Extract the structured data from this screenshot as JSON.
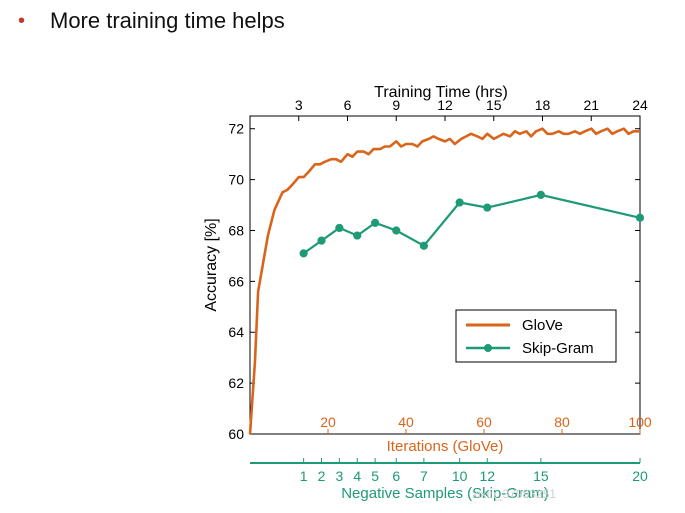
{
  "slide": {
    "bullet_glyph": "•",
    "bullet_text": "More training time helps"
  },
  "watermark": "xixin_37993251",
  "colors": {
    "glove": "#d9651b",
    "skipgram": "#1e9a77",
    "axis": "#000000",
    "bullet": "#c0392b"
  },
  "chart_data": {
    "type": "line",
    "ylabel": "Accuracy [%]",
    "ylim": [
      60,
      72.5
    ],
    "yticks": [
      60,
      62,
      64,
      66,
      68,
      70,
      72
    ],
    "top_axis": {
      "label": "Training Time (hrs)",
      "ticks": [
        3,
        6,
        9,
        12,
        15,
        18,
        21,
        24
      ],
      "range": [
        0,
        24
      ]
    },
    "iterations_axis": {
      "label": "Iterations (GloVe)",
      "ticks": [
        20,
        40,
        60,
        80,
        100
      ],
      "range": [
        0,
        100
      ]
    },
    "negative_samples_axis": {
      "label": "Negative Samples (Skip-Gram)",
      "ticks": [
        1,
        2,
        3,
        4,
        5,
        6,
        7,
        10,
        12,
        15,
        20
      ],
      "tick_positions_hrs": [
        3.3,
        4.4,
        5.5,
        6.6,
        7.7,
        9.0,
        10.7,
        12.9,
        14.6,
        17.9,
        24.0
      ]
    },
    "legend_position": "lower-right",
    "grid": false,
    "series": [
      {
        "name": "GloVe",
        "x_axis": "training_time_hrs",
        "x": [
          0,
          0.3,
          0.5,
          0.8,
          1.1,
          1.5,
          2.0,
          2.3,
          2.6,
          3.0,
          3.3,
          3.6,
          4.0,
          4.3,
          4.6,
          5.0,
          5.3,
          5.6,
          6.0,
          6.3,
          6.6,
          7.0,
          7.3,
          7.6,
          8.0,
          8.3,
          8.6,
          9.0,
          9.3,
          9.6,
          10.0,
          10.3,
          10.6,
          11.0,
          11.3,
          11.6,
          12.0,
          12.3,
          12.6,
          13.0,
          13.3,
          13.6,
          14.0,
          14.3,
          14.6,
          15.0,
          15.3,
          15.6,
          16.0,
          16.3,
          16.6,
          17.0,
          17.3,
          17.6,
          18.0,
          18.3,
          18.6,
          19.0,
          19.3,
          19.6,
          20.0,
          20.3,
          20.6,
          21.0,
          21.3,
          21.6,
          22.0,
          22.3,
          22.6,
          23.0,
          23.3,
          23.6,
          24.0
        ],
        "values": [
          60.0,
          62.8,
          65.6,
          66.7,
          67.8,
          68.8,
          69.5,
          69.6,
          69.8,
          70.1,
          70.1,
          70.3,
          70.6,
          70.6,
          70.7,
          70.8,
          70.8,
          70.7,
          71.0,
          70.9,
          71.1,
          71.1,
          71.0,
          71.2,
          71.2,
          71.3,
          71.3,
          71.5,
          71.3,
          71.4,
          71.4,
          71.3,
          71.5,
          71.6,
          71.7,
          71.6,
          71.5,
          71.6,
          71.4,
          71.6,
          71.7,
          71.8,
          71.7,
          71.6,
          71.8,
          71.6,
          71.7,
          71.8,
          71.7,
          71.9,
          71.8,
          71.9,
          71.7,
          71.9,
          72.0,
          71.8,
          71.8,
          71.9,
          71.8,
          71.8,
          71.9,
          71.8,
          71.9,
          72.0,
          71.8,
          71.9,
          72.0,
          71.8,
          71.9,
          72.0,
          71.8,
          71.9,
          71.9
        ]
      },
      {
        "name": "Skip-Gram",
        "x_axis": "negative_samples",
        "x": [
          1,
          2,
          3,
          4,
          5,
          6,
          7,
          10,
          12,
          15,
          20
        ],
        "values": [
          67.1,
          67.6,
          68.1,
          67.8,
          68.3,
          68.0,
          67.4,
          69.1,
          68.9,
          69.4,
          68.5
        ]
      }
    ]
  }
}
